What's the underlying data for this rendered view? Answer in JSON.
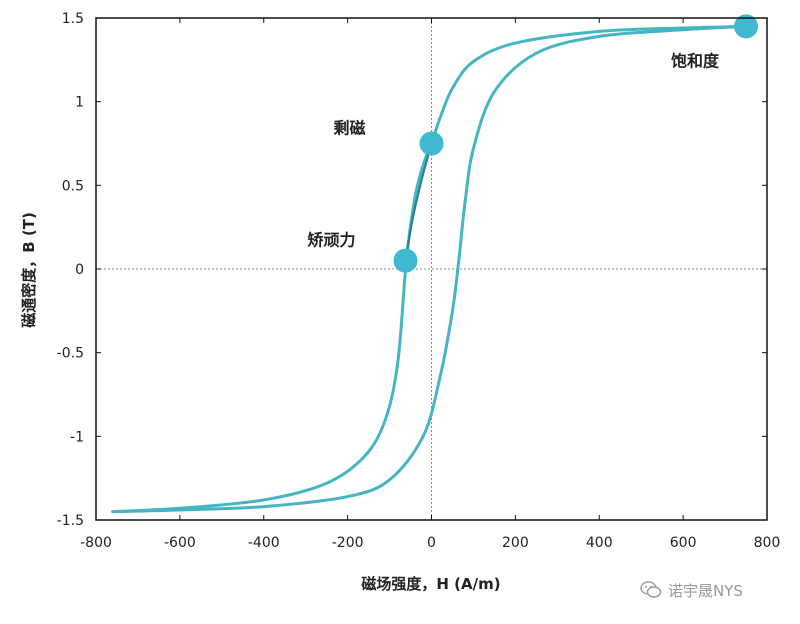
{
  "chart_data": {
    "type": "line",
    "title": "",
    "xlabel": "磁场强度，H (A/m)",
    "ylabel": "磁通密度，B (T)",
    "xlim": [
      -800,
      800
    ],
    "ylim": [
      -1.5,
      1.5
    ],
    "xticks": [
      -800,
      -600,
      -400,
      -200,
      0,
      200,
      400,
      600,
      800
    ],
    "xtick_labels": [
      "-800",
      "-600",
      "-400",
      "-200",
      "0",
      "200",
      "400",
      "600",
      "800"
    ],
    "yticks": [
      -1.5,
      -1,
      -0.5,
      0,
      0.5,
      1,
      1.5
    ],
    "ytick_labels": [
      "-1.5",
      "-1",
      "-0.5",
      "0",
      "0.5",
      "1",
      "1.5"
    ],
    "grid": false,
    "reference_lines": {
      "x": 0,
      "y": 0,
      "style": "dotted"
    },
    "series": [
      {
        "segment": "upper-branch",
        "x": [
          -760,
          -600,
          -400,
          -250,
          -160,
          -110,
          -80,
          -60,
          -40,
          -20,
          0,
          20,
          50,
          100,
          200,
          400,
          600,
          750
        ],
        "y": [
          -1.45,
          -1.43,
          -1.38,
          -1.28,
          -1.12,
          -0.9,
          -0.55,
          0.05,
          0.42,
          0.62,
          0.75,
          0.9,
          1.08,
          1.24,
          1.35,
          1.42,
          1.44,
          1.45
        ]
      },
      {
        "segment": "lower-branch",
        "x": [
          -760,
          -600,
          -400,
          -200,
          -100,
          -20,
          20,
          50,
          65,
          80,
          100,
          150,
          250,
          400,
          600,
          750
        ],
        "y": [
          -1.45,
          -1.44,
          -1.42,
          -1.36,
          -1.26,
          -1.0,
          -0.65,
          -0.25,
          0.05,
          0.4,
          0.72,
          1.06,
          1.29,
          1.39,
          1.43,
          1.45
        ]
      }
    ],
    "initial_magnetization": {
      "x": [
        -62,
        -45,
        -25,
        -10,
        0
      ],
      "y": [
        0.05,
        0.3,
        0.52,
        0.66,
        0.75
      ]
    },
    "points": [
      {
        "label": "剩磁",
        "x": 0,
        "y": 0.75
      },
      {
        "label": "矫顽力",
        "x": -62,
        "y": 0.05
      },
      {
        "label": "饱和度",
        "x": 750,
        "y": 1.45
      }
    ],
    "colors": {
      "curve": "#45b5c4",
      "curve_dark": "#2a7f98",
      "marker": "#3fb8d0",
      "reference": "#8a8a8a",
      "frame": "#111111",
      "watermark": "#9a9a9a"
    }
  },
  "watermark": {
    "text": "诺宇晟NYS",
    "icon": "wechat-icon"
  }
}
